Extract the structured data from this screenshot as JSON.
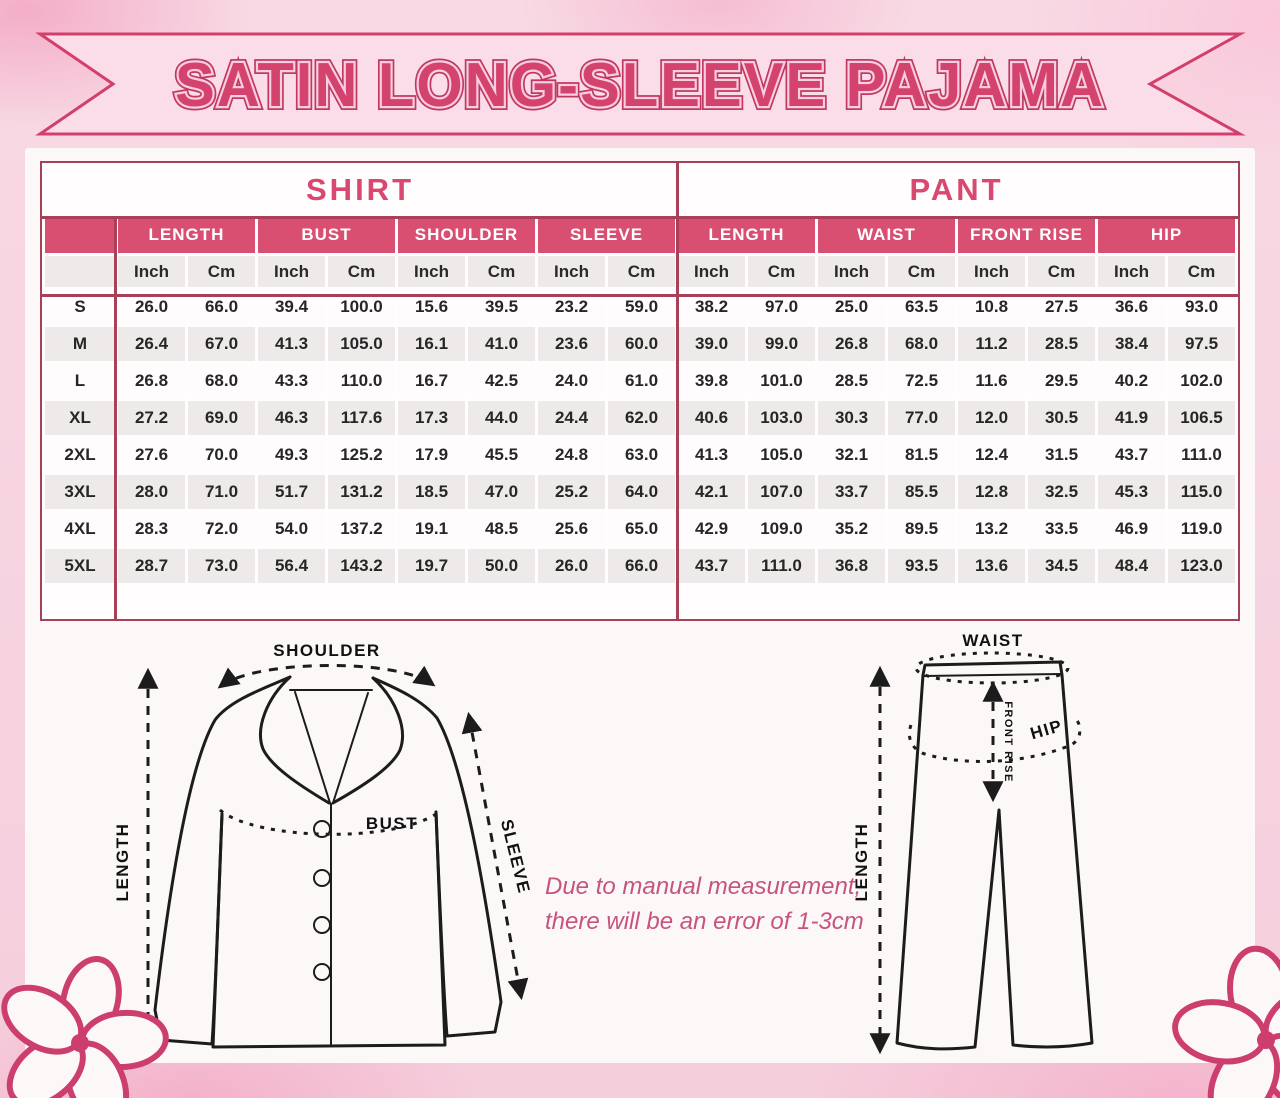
{
  "title": "SATIN LONG-SLEEVE PAJAMA",
  "table": {
    "sections": [
      {
        "label": "SHIRT",
        "columns": [
          "LENGTH",
          "BUST",
          "SHOULDER",
          "SLEEVE"
        ]
      },
      {
        "label": "PANT",
        "columns": [
          "LENGTH",
          "WAIST",
          "FRONT RISE",
          "HIP"
        ]
      }
    ],
    "unit_labels": [
      "Inch",
      "Cm"
    ],
    "rows": [
      {
        "size": "S",
        "values": [
          "26.0",
          "66.0",
          "39.4",
          "100.0",
          "15.6",
          "39.5",
          "23.2",
          "59.0",
          "38.2",
          "97.0",
          "25.0",
          "63.5",
          "10.8",
          "27.5",
          "36.6",
          "93.0"
        ]
      },
      {
        "size": "M",
        "values": [
          "26.4",
          "67.0",
          "41.3",
          "105.0",
          "16.1",
          "41.0",
          "23.6",
          "60.0",
          "39.0",
          "99.0",
          "26.8",
          "68.0",
          "11.2",
          "28.5",
          "38.4",
          "97.5"
        ]
      },
      {
        "size": "L",
        "values": [
          "26.8",
          "68.0",
          "43.3",
          "110.0",
          "16.7",
          "42.5",
          "24.0",
          "61.0",
          "39.8",
          "101.0",
          "28.5",
          "72.5",
          "11.6",
          "29.5",
          "40.2",
          "102.0"
        ]
      },
      {
        "size": "XL",
        "values": [
          "27.2",
          "69.0",
          "46.3",
          "117.6",
          "17.3",
          "44.0",
          "24.4",
          "62.0",
          "40.6",
          "103.0",
          "30.3",
          "77.0",
          "12.0",
          "30.5",
          "41.9",
          "106.5"
        ]
      },
      {
        "size": "2XL",
        "values": [
          "27.6",
          "70.0",
          "49.3",
          "125.2",
          "17.9",
          "45.5",
          "24.8",
          "63.0",
          "41.3",
          "105.0",
          "32.1",
          "81.5",
          "12.4",
          "31.5",
          "43.7",
          "111.0"
        ]
      },
      {
        "size": "3XL",
        "values": [
          "28.0",
          "71.0",
          "51.7",
          "131.2",
          "18.5",
          "47.0",
          "25.2",
          "64.0",
          "42.1",
          "107.0",
          "33.7",
          "85.5",
          "12.8",
          "32.5",
          "45.3",
          "115.0"
        ]
      },
      {
        "size": "4XL",
        "values": [
          "28.3",
          "72.0",
          "54.0",
          "137.2",
          "19.1",
          "48.5",
          "25.6",
          "65.0",
          "42.9",
          "109.0",
          "35.2",
          "89.5",
          "13.2",
          "33.5",
          "46.9",
          "119.0"
        ]
      },
      {
        "size": "5XL",
        "values": [
          "28.7",
          "73.0",
          "56.4",
          "143.2",
          "19.7",
          "50.0",
          "26.0",
          "66.0",
          "43.7",
          "111.0",
          "36.8",
          "93.5",
          "13.6",
          "34.5",
          "48.4",
          "123.0"
        ]
      }
    ]
  },
  "diagrams": {
    "shirt": {
      "shoulder": "SHOULDER",
      "length": "LENGTH",
      "bust": "BUST",
      "sleeve": "SLEEVE"
    },
    "pant": {
      "waist": "WAIST",
      "length": "LENGTH",
      "front_rise": "FRONT RISE",
      "hip": "HIP"
    }
  },
  "note": {
    "line1": "Due to manual measurement,",
    "line2": "there will be an error of 1-3cm"
  },
  "colors": {
    "accent_pink": "#d9486f",
    "header_band": "#d94f72",
    "table_line": "#a84158",
    "banner_fill": "#fbdce9",
    "banner_border": "#d13f6a",
    "note_pink": "#c65380",
    "row_alt": "#efeaea"
  }
}
